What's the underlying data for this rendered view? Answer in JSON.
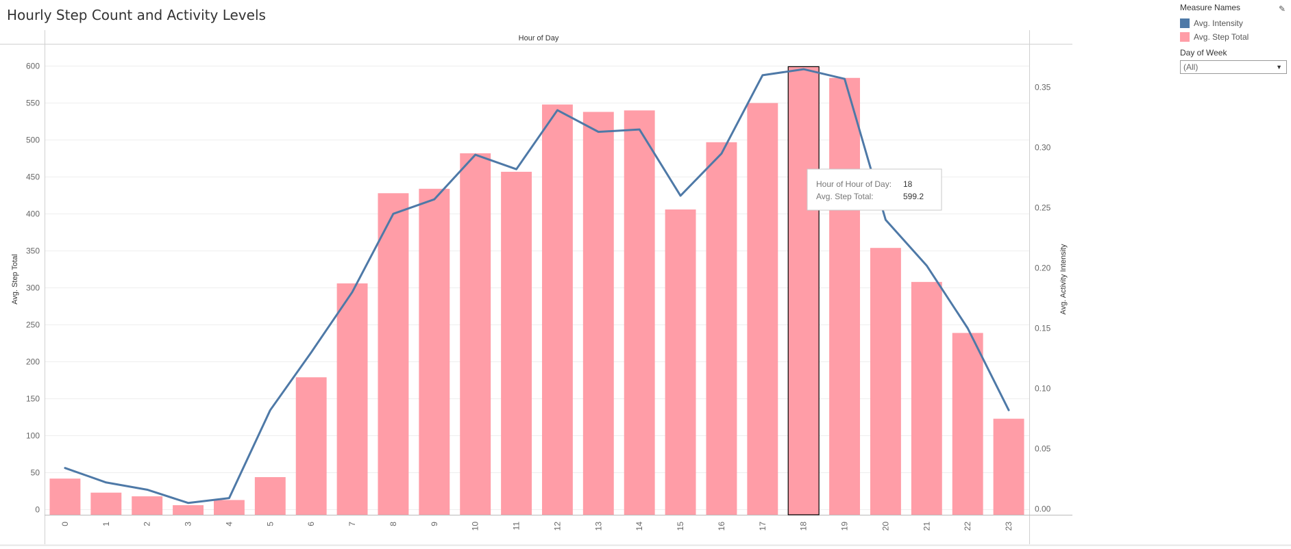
{
  "title": "Hourly Step Count and Activity Levels",
  "legend": {
    "title": "Measure Names",
    "items": [
      {
        "label": "Avg. Intensity",
        "color": "#4e79a7"
      },
      {
        "label": "Avg. Step Total",
        "color": "#ff9da7"
      }
    ],
    "edit_icon": "pencil-icon"
  },
  "filter": {
    "title": "Day of Week",
    "value": "(All)",
    "icon": "chevron-down-icon"
  },
  "tooltip": {
    "label1": "Hour of Hour of Day:",
    "value1": "18",
    "label2": "Avg. Step Total:",
    "value2": "599.2"
  },
  "chart_data": {
    "type": "bar",
    "title": "Hourly Step Count and Activity Levels",
    "xlabel": "Hour of Day",
    "ylabel": "Avg. Step Total",
    "y2label": "Avg. Activity Intensity",
    "categories": [
      "0",
      "1",
      "2",
      "3",
      "4",
      "5",
      "6",
      "7",
      "8",
      "9",
      "10",
      "11",
      "12",
      "13",
      "14",
      "15",
      "16",
      "17",
      "18",
      "19",
      "20",
      "21",
      "22",
      "23"
    ],
    "series": [
      {
        "name": "Avg. Step Total",
        "type": "bar",
        "axis": "left",
        "color": "#ff9da7",
        "values": [
          42,
          23,
          18,
          6,
          13,
          44,
          179,
          306,
          428,
          434,
          482,
          457,
          548,
          538,
          540,
          406,
          497,
          550,
          599.2,
          584,
          354,
          308,
          239,
          123
        ]
      },
      {
        "name": "Avg. Intensity",
        "type": "line",
        "axis": "right",
        "color": "#4e79a7",
        "values": [
          0.034,
          0.022,
          0.016,
          0.005,
          0.009,
          0.082,
          0.13,
          0.18,
          0.245,
          0.257,
          0.294,
          0.282,
          0.331,
          0.313,
          0.315,
          0.26,
          0.295,
          0.36,
          0.365,
          0.357,
          0.24,
          0.202,
          0.15,
          0.082
        ]
      }
    ],
    "ylim": [
      0,
      600
    ],
    "y2lim": [
      0,
      0.35
    ],
    "yticks": [
      "0",
      "50",
      "100",
      "150",
      "200",
      "250",
      "300",
      "350",
      "400",
      "450",
      "500",
      "550",
      "600"
    ],
    "y2ticks": [
      "0.00",
      "0.05",
      "0.10",
      "0.15",
      "0.20",
      "0.25",
      "0.30",
      "0.35"
    ],
    "highlighted_category": "18",
    "grid": true,
    "legend_position": "top-right"
  }
}
